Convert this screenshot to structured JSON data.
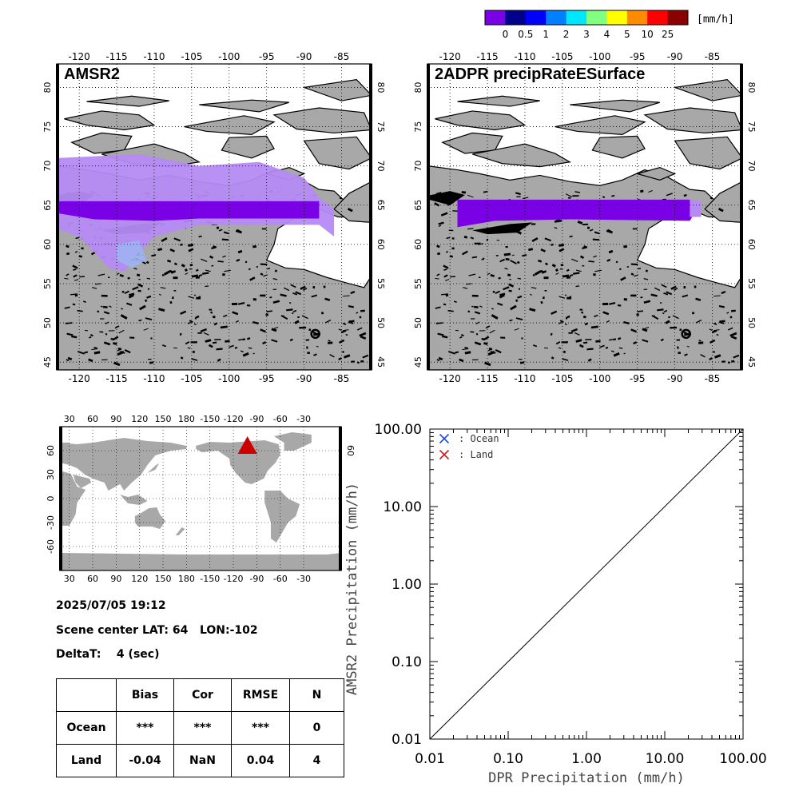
{
  "colorbar": {
    "unit": "[mm/h]",
    "colors": [
      "#7a00e6",
      "#00008c",
      "#0000ff",
      "#0080ff",
      "#00e6ff",
      "#80ff80",
      "#ffff00",
      "#ff8c00",
      "#ff0000",
      "#8b0000"
    ],
    "labels": [
      "0",
      "0.5",
      "1",
      "2",
      "3",
      "4",
      "5",
      "10",
      "25"
    ]
  },
  "maps": [
    {
      "title": "AMSR2",
      "lon_ticks": [
        "-120",
        "-115",
        "-110",
        "-105",
        "-100",
        "-95",
        "-90",
        "-85"
      ],
      "lat_ticks": [
        "45",
        "50",
        "55",
        "60",
        "65",
        "70",
        "75",
        "80"
      ],
      "lon_range": [
        -123,
        -81
      ],
      "lat_range": [
        44,
        83
      ]
    },
    {
      "title": "2ADPR precipRateESurface",
      "lon_ticks": [
        "-120",
        "-115",
        "-110",
        "-105",
        "-100",
        "-95",
        "-90",
        "-85"
      ],
      "lat_ticks": [
        "45",
        "50",
        "55",
        "60",
        "65",
        "70",
        "75",
        "80"
      ],
      "lon_range": [
        -123,
        -81
      ],
      "lat_range": [
        44,
        83
      ]
    }
  ],
  "globe": {
    "lon_ticks": [
      "30",
      "60",
      "90",
      "120",
      "150",
      "180",
      "-150",
      "-120",
      "-90",
      "-60",
      "-30"
    ],
    "lat_ticks": [
      "-60",
      "-30",
      "0",
      "30",
      "60"
    ],
    "right_lat_ticks": [
      "60"
    ],
    "marker": {
      "lon": -102,
      "lat": 64,
      "color": "#cc0000"
    }
  },
  "info": {
    "datetime": "2025/07/05 19:12",
    "scene_center": "Scene center LAT: 64   LON:-102",
    "deltat": "DeltaT:    4 (sec)"
  },
  "stats": {
    "headers": [
      "",
      "Bias",
      "Cor",
      "RMSE",
      "N"
    ],
    "rows": [
      [
        "Ocean",
        "***",
        "***",
        "***",
        "0"
      ],
      [
        "Land",
        "-0.04",
        "NaN",
        "0.04",
        "4"
      ]
    ]
  },
  "chart_data": {
    "type": "scatter",
    "xlabel": "DPR Precipitation (mm/h)",
    "ylabel": "AMSR2 Precipitation (mm/h)",
    "xlim": [
      0.01,
      100
    ],
    "ylim": [
      0.01,
      100
    ],
    "xscale": "log",
    "yscale": "log",
    "x_ticks": [
      "0.01",
      "0.10",
      "1.00",
      "10.00",
      "100.00"
    ],
    "y_ticks": [
      "0.01",
      "0.10",
      "1.00",
      "10.00",
      "100.00"
    ],
    "legend": [
      {
        "name": ": Ocean",
        "color": "#1f4fd6"
      },
      {
        "name": ": Land",
        "color": "#c81e1e"
      }
    ],
    "legend_position": "top-left",
    "series": [
      {
        "name": "Ocean",
        "points": []
      },
      {
        "name": "Land",
        "points": []
      }
    ],
    "reference_line": "1:1"
  }
}
